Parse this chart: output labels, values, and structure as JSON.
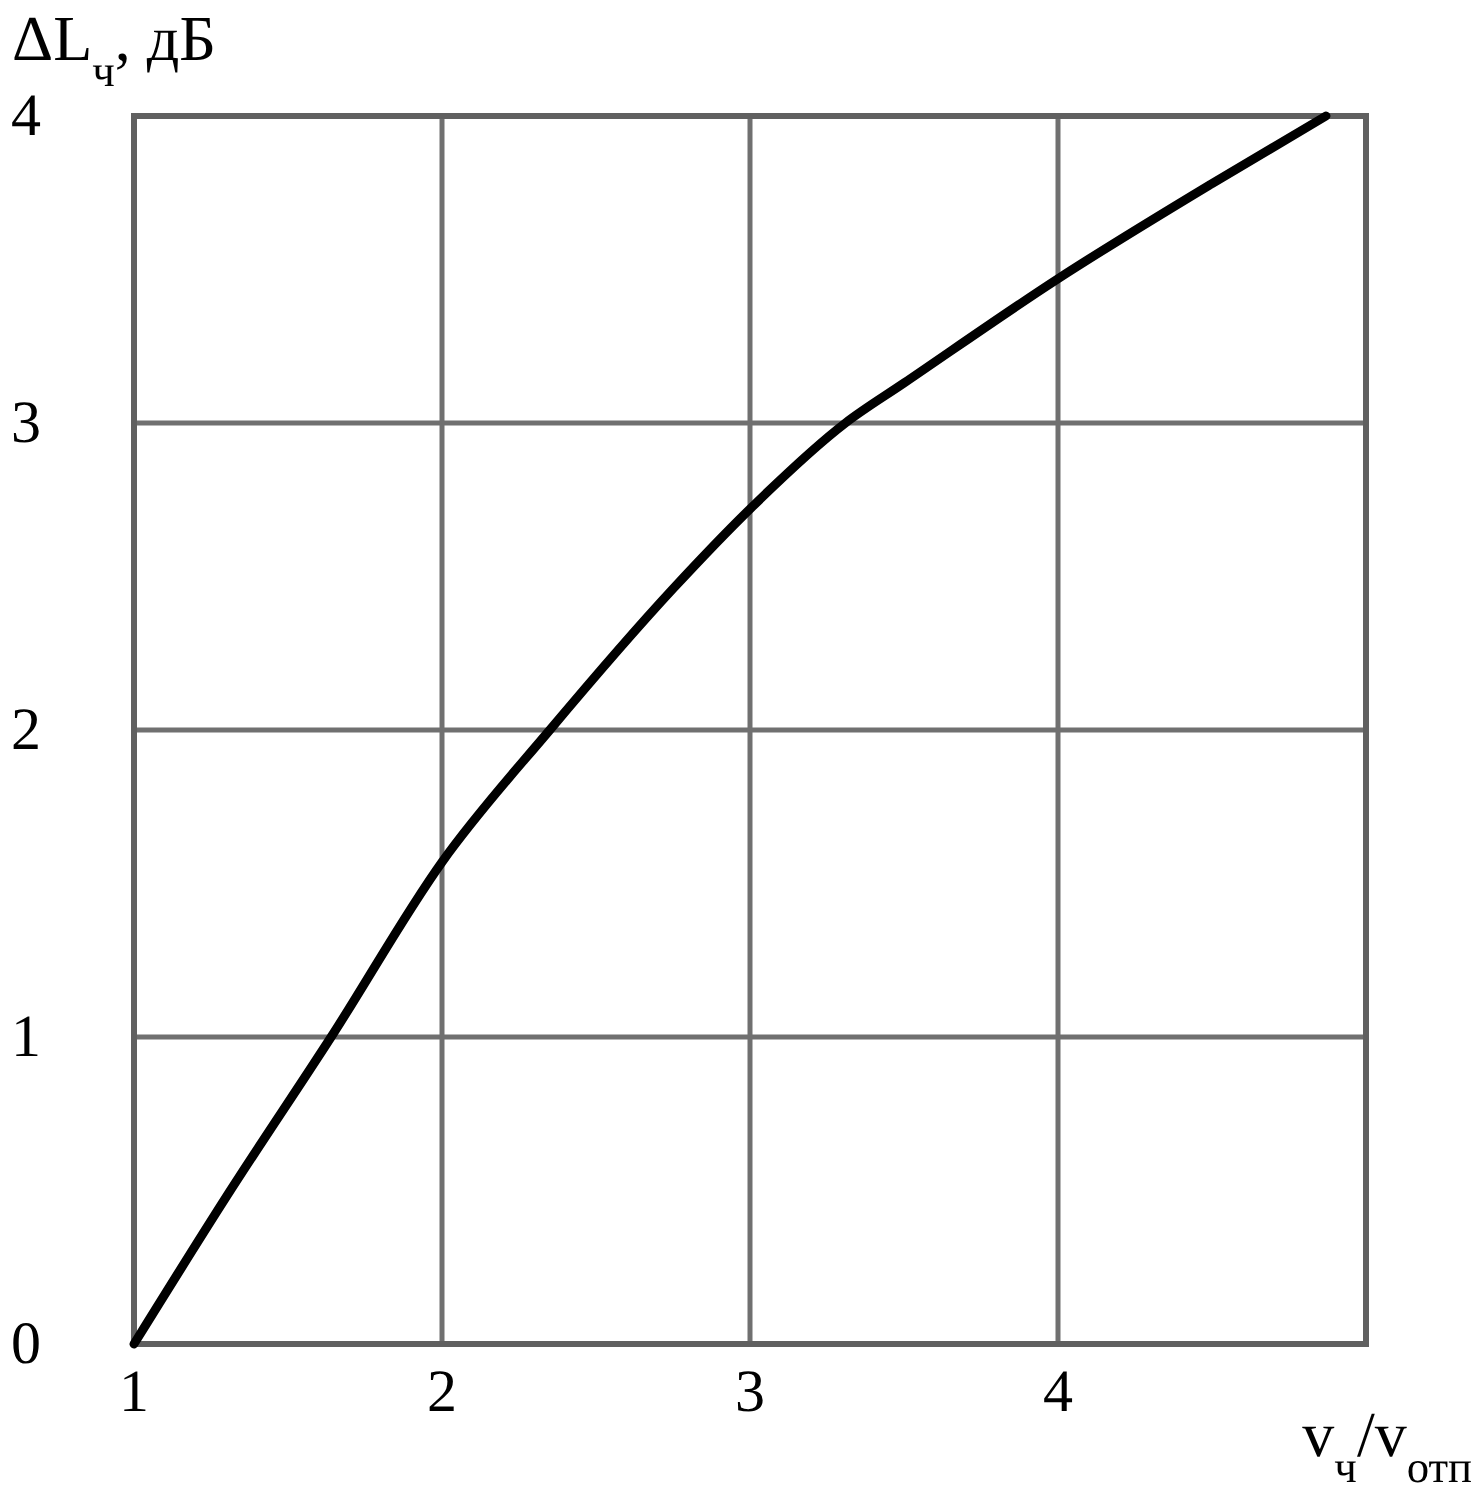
{
  "chart_data": {
    "type": "line",
    "xlabel": "v$_{ч}$/v$_{отп}$",
    "ylabel": "ΔL$_{ч}$, дБ",
    "x": [
      1,
      1.3,
      1.64,
      2,
      2.35,
      2.75,
      3,
      3.31,
      3.5,
      4,
      4.5,
      4.87
    ],
    "series": [
      {
        "color": "#000000",
        "values": [
          0,
          0.48,
          1,
          1.57,
          2,
          2.46,
          2.72,
          3,
          3.13,
          3.47,
          3.78,
          4
        ]
      }
    ],
    "xlim": [
      1,
      5
    ],
    "ylim": [
      0,
      4
    ],
    "xticks": [
      1,
      2,
      3,
      4
    ],
    "yticks": [
      0,
      1,
      2,
      3,
      4
    ],
    "grid": true,
    "line_style": "solid",
    "marker": "none"
  }
}
